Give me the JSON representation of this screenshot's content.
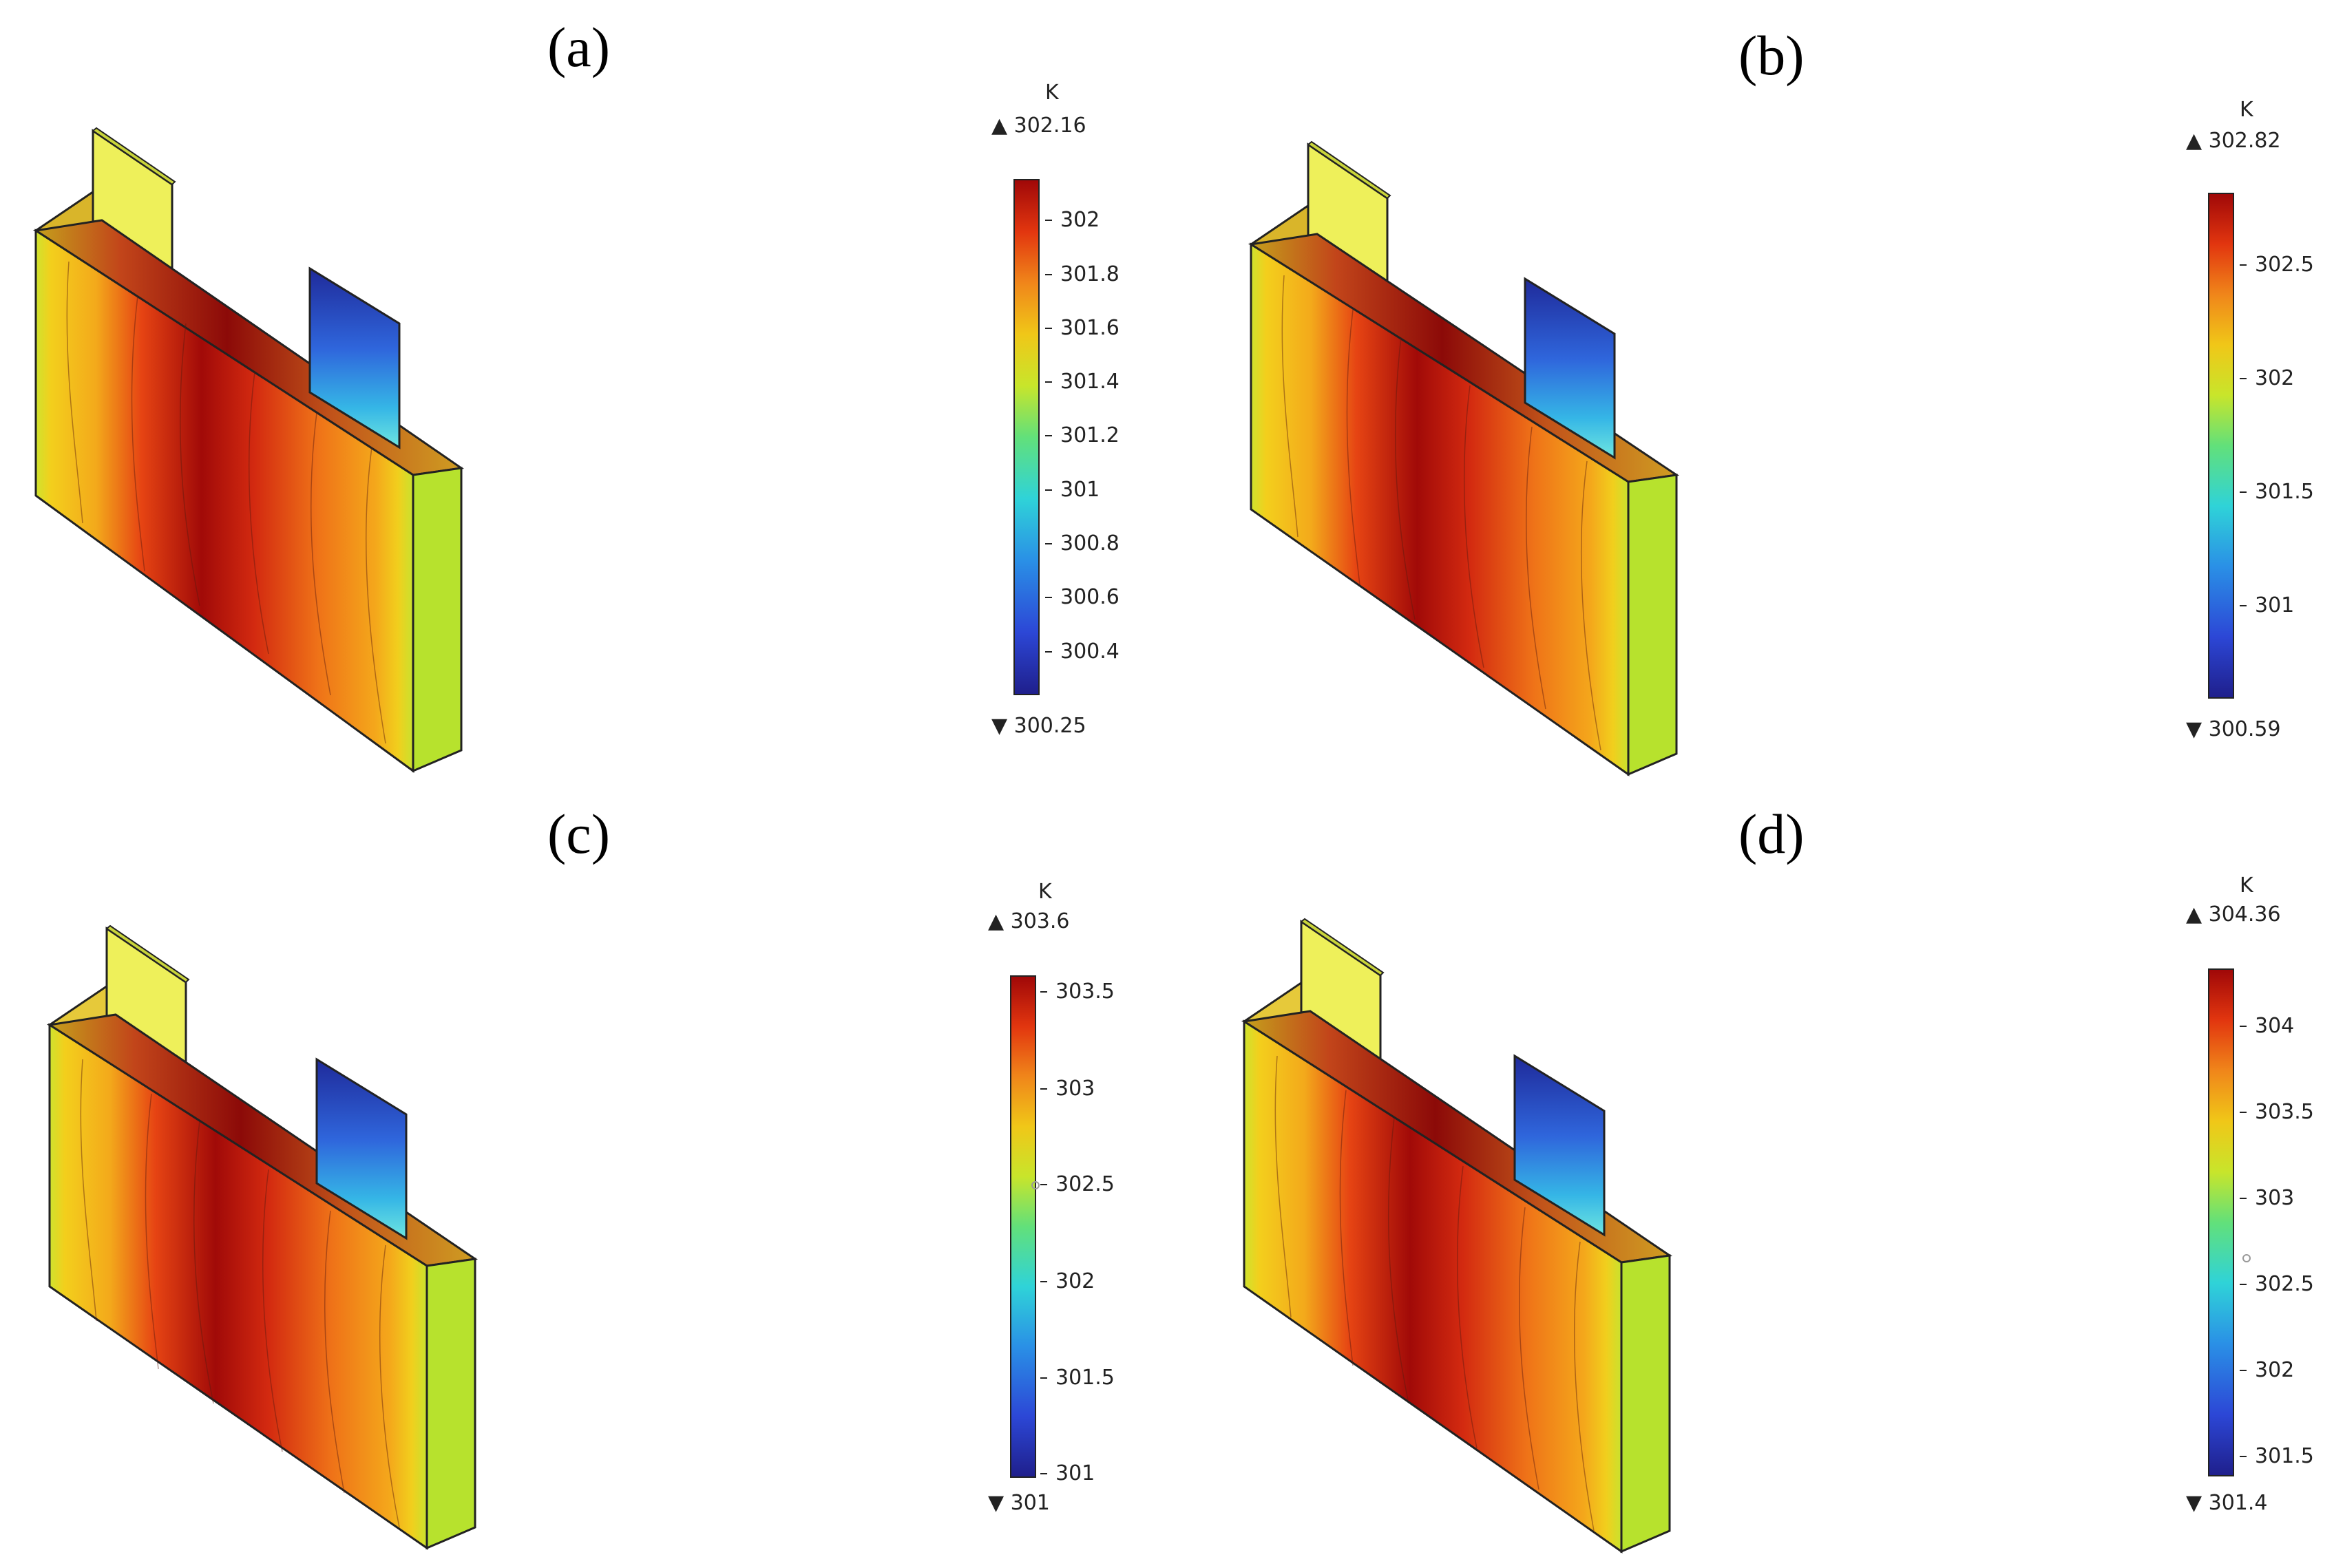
{
  "panels": [
    {
      "label": "(a)",
      "unit": "K",
      "max": "▲ 302.16",
      "min": "▼ 300.25",
      "ticks": [
        "302",
        "301.8",
        "301.6",
        "301.4",
        "301.2",
        "301",
        "300.8",
        "300.6",
        "300.4"
      ]
    },
    {
      "label": "(b)",
      "unit": "K",
      "max": "▲ 302.82",
      "min": "▼ 300.59",
      "ticks": [
        "302.5",
        "302",
        "301.5",
        "301"
      ]
    },
    {
      "label": "(c)",
      "unit": "K",
      "max": "▲ 303.6",
      "min": "▼ 301",
      "ticks": [
        "303.5",
        "303",
        "302.5",
        "302",
        "301.5",
        "301"
      ]
    },
    {
      "label": "(d)",
      "unit": "K",
      "max": "▲ 304.36",
      "min": "▼ 301.4",
      "ticks": [
        "304",
        "303.5",
        "303",
        "302.5",
        "302",
        "301.5"
      ]
    }
  ],
  "colormap": {
    "low": "#1f1f8c",
    "mid_low": "#2fd3d8",
    "mid": "#62e07a",
    "mid_high": "#f0c718",
    "high": "#e2360f",
    "top": "#a00808"
  }
}
